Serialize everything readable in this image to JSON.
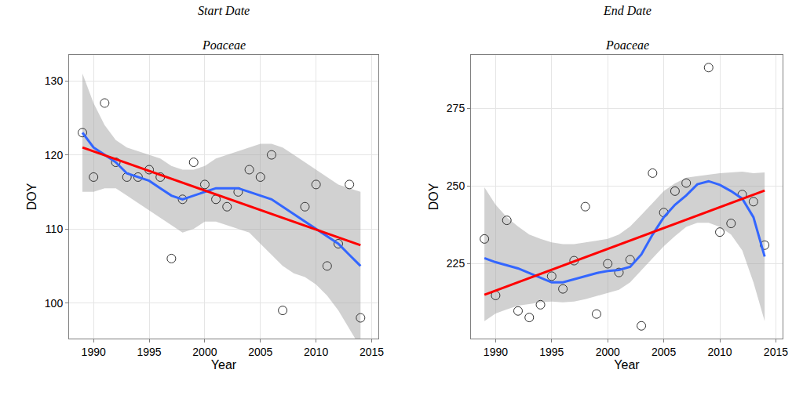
{
  "chart_data": [
    {
      "type": "scatter",
      "title": "Start Date",
      "subtitle": "Poaceae",
      "x_label": "Year",
      "y_label": "DOY",
      "grid": true,
      "tick_labels": true,
      "xlim": [
        1987.8,
        2015.6
      ],
      "xticks": [
        1990,
        1995,
        2000,
        2005,
        2010,
        2015
      ],
      "ylim": [
        95.2,
        133.5
      ],
      "yticks": [
        100,
        110,
        120,
        130
      ],
      "series": [
        {
          "type": "band",
          "color": "#999999",
          "x": [
            1989,
            1990,
            1991,
            1992,
            1993,
            1994,
            1995,
            1996,
            1997,
            1998,
            1999,
            2000,
            2001,
            2002,
            2003,
            2004,
            2005,
            2006,
            2007,
            2008,
            2009,
            2010,
            2011,
            2012,
            2013,
            2014
          ],
          "lower": [
            115,
            115,
            115.5,
            115.5,
            114.5,
            113.5,
            112.5,
            111.5,
            110.5,
            109.5,
            110,
            111,
            111,
            110.5,
            110,
            109.5,
            108,
            106.5,
            105,
            104,
            103.5,
            102.5,
            101,
            99,
            96.5,
            94
          ],
          "upper": [
            131,
            127,
            124,
            122,
            121,
            120.5,
            120,
            119.5,
            118.5,
            118,
            118,
            118.5,
            119.5,
            120,
            120.5,
            121,
            121.5,
            121.5,
            121,
            120,
            119,
            118,
            117,
            116,
            115.5,
            115
          ]
        },
        {
          "type": "scatter",
          "marker": "open circle",
          "color": "#333333",
          "x": [
            1989,
            1990,
            1991,
            1992,
            1993,
            1994,
            1995,
            1996,
            1997,
            1998,
            1999,
            2000,
            2001,
            2002,
            2003,
            2004,
            2005,
            2006,
            2007,
            2009,
            2010,
            2011,
            2012,
            2013,
            2014
          ],
          "values": [
            123,
            117,
            127,
            119,
            117,
            117,
            118,
            117,
            106,
            114,
            119,
            116,
            114,
            113,
            115,
            118,
            117,
            120,
            99,
            113,
            116,
            105,
            108,
            116,
            98
          ]
        },
        {
          "type": "line",
          "line_style": "solid",
          "color": "#3366ff",
          "x": [
            1989,
            1990,
            1991,
            1992,
            1993,
            1994,
            1995,
            1996,
            1997,
            1998,
            1999,
            2000,
            2001,
            2002,
            2003,
            2004,
            2005,
            2006,
            2007,
            2008,
            2009,
            2010,
            2011,
            2012,
            2013,
            2014
          ],
          "values": [
            123,
            121,
            120,
            119,
            117.5,
            117,
            116.5,
            115.5,
            114.5,
            114,
            114.5,
            115,
            115.5,
            115.5,
            115.5,
            115,
            114.5,
            114,
            113,
            112,
            111,
            110,
            109,
            108,
            106.5,
            105
          ]
        },
        {
          "type": "line",
          "line_style": "solid",
          "color": "#ff0000",
          "x": [
            1989,
            2014
          ],
          "values": [
            121,
            107.8
          ]
        }
      ]
    },
    {
      "type": "scatter",
      "title": "End Date",
      "subtitle": "Poaceae",
      "x_label": "Year",
      "y_label": "DOY",
      "grid": true,
      "tick_labels": true,
      "xlim": [
        1987.8,
        2015.6
      ],
      "xticks": [
        1990,
        1995,
        2000,
        2005,
        2010,
        2015
      ],
      "ylim": [
        200.9,
        292.3
      ],
      "yticks": [
        225,
        250,
        275
      ],
      "series": [
        {
          "type": "band",
          "color": "#999999",
          "x": [
            1989,
            1990,
            1991,
            1992,
            1993,
            1994,
            1995,
            1996,
            1997,
            1998,
            1999,
            2000,
            2001,
            2002,
            2003,
            2004,
            2005,
            2006,
            2007,
            2008,
            2009,
            2010,
            2011,
            2012,
            2013,
            2014
          ],
          "lower": [
            206.5,
            209,
            210.3,
            211.5,
            212,
            212.6,
            212.8,
            212.6,
            212.8,
            213.6,
            214.6,
            215.6,
            216.6,
            219,
            223,
            226.8,
            230.6,
            233.9,
            236.9,
            238.2,
            238.2,
            236.9,
            234.4,
            229.3,
            219,
            206.5
          ],
          "upper": [
            249.6,
            244,
            240,
            237,
            234.4,
            233,
            231.9,
            231.3,
            231.3,
            231.9,
            232.4,
            233,
            234.4,
            237,
            240.7,
            244.5,
            248.4,
            250.9,
            252.7,
            253.2,
            253.7,
            254.2,
            254.4,
            254.7,
            254.2,
            254.4
          ]
        },
        {
          "type": "scatter",
          "marker": "open circle",
          "color": "#333333",
          "x": [
            1989,
            1990,
            1991,
            1992,
            1993,
            1994,
            1995,
            1996,
            1997,
            1998,
            1999,
            2000,
            2001,
            2002,
            2003,
            2004,
            2005,
            2006,
            2007,
            2009,
            2010,
            2011,
            2012,
            2013,
            2014
          ],
          "values": [
            233,
            214.8,
            239,
            209.8,
            207.7,
            211.8,
            221,
            216.9,
            226,
            243.4,
            208.8,
            225,
            222.2,
            226.3,
            205,
            254.2,
            241.5,
            248.4,
            251,
            288.2,
            235.2,
            238,
            247.3,
            245,
            231
          ]
        },
        {
          "type": "line",
          "line_style": "solid",
          "color": "#3366ff",
          "x": [
            1989,
            1990,
            1991,
            1992,
            1993,
            1994,
            1995,
            1996,
            1997,
            1998,
            1999,
            2000,
            2001,
            2002,
            2003,
            2004,
            2005,
            2006,
            2007,
            2008,
            2009,
            2010,
            2011,
            2012,
            2013,
            2014
          ],
          "values": [
            226.8,
            225.5,
            224.5,
            223.5,
            222,
            220.5,
            219,
            219,
            220,
            221,
            222,
            222.7,
            223,
            224,
            228,
            234.4,
            240,
            244,
            247,
            250.6,
            251.6,
            250.4,
            248.4,
            246,
            240,
            227.3
          ]
        },
        {
          "type": "line",
          "line_style": "solid",
          "color": "#ff0000",
          "x": [
            1989,
            2014
          ],
          "values": [
            215,
            248.6
          ]
        }
      ]
    }
  ]
}
